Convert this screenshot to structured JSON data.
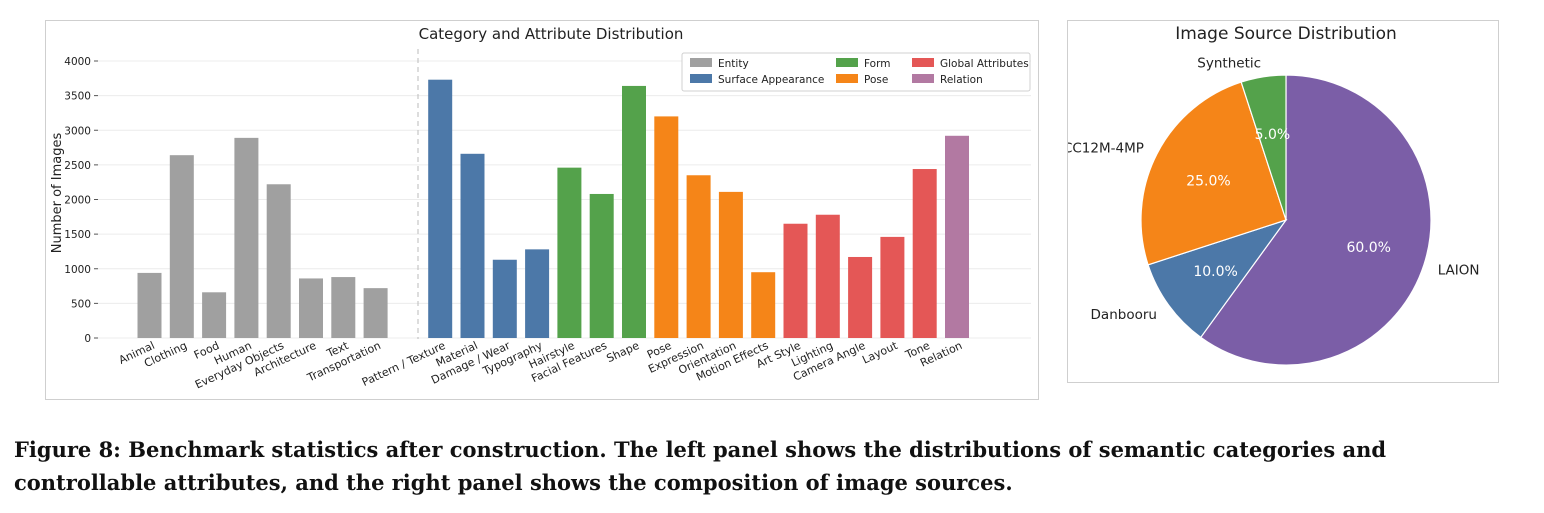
{
  "caption": "Figure 8: Benchmark statistics after construction. The left panel shows the distributions of semantic categories and controllable attributes, and the right panel shows the composition of image sources.",
  "colors": {
    "Entity": "#a0a0a0",
    "Surface Appearance": "#4c78a8",
    "Form": "#54a24b",
    "Pose": "#f58518",
    "Global Attributes": "#e45756",
    "Relation": "#b279a2",
    "pie_LAION": "#7b5ea7",
    "pie_Danbooru": "#4c78a8",
    "pie_CC12M-4MP": "#f58518",
    "pie_Synthetic": "#54a24b"
  },
  "chart_data": [
    {
      "type": "bar",
      "title": "Category and Attribute Distribution",
      "xlabel": "",
      "ylabel": "Number of Images",
      "ylim": [
        0,
        4000
      ],
      "yticks": [
        0,
        500,
        1000,
        1500,
        2000,
        2500,
        3000,
        3500,
        4000
      ],
      "grid": true,
      "legend_position": "top-right",
      "legend": [
        "Entity",
        "Surface Appearance",
        "Form",
        "Pose",
        "Global Attributes",
        "Relation"
      ],
      "categories": [
        "Animal",
        "Clothing",
        "Food",
        "Human",
        "Everyday Objects",
        "Architecture",
        "Text",
        "Transportation",
        "Pattern / Texture",
        "Material",
        "Damage / Wear",
        "Typography",
        "Hairstyle",
        "Facial Features",
        "Shape",
        "Pose",
        "Expression",
        "Orientation",
        "Motion Effects",
        "Art Style",
        "Lighting",
        "Camera Angle",
        "Layout",
        "Tone",
        "Relation"
      ],
      "values": [
        940,
        2640,
        660,
        2890,
        2220,
        860,
        880,
        720,
        3730,
        2660,
        1130,
        1280,
        2460,
        2080,
        3640,
        3200,
        2350,
        2110,
        950,
        1650,
        1780,
        1170,
        1460,
        2440,
        2920
      ],
      "groups": [
        "Entity",
        "Entity",
        "Entity",
        "Entity",
        "Entity",
        "Entity",
        "Entity",
        "Entity",
        "Surface Appearance",
        "Surface Appearance",
        "Surface Appearance",
        "Surface Appearance",
        "Form",
        "Form",
        "Form",
        "Pose",
        "Pose",
        "Pose",
        "Pose",
        "Global Attributes",
        "Global Attributes",
        "Global Attributes",
        "Global Attributes",
        "Global Attributes",
        "Relation"
      ]
    },
    {
      "type": "pie",
      "title": "Image Source Distribution",
      "slices": [
        {
          "label": "LAION",
          "value": 60.0,
          "pct": "60.0%"
        },
        {
          "label": "Danbooru",
          "value": 10.0,
          "pct": "10.0%"
        },
        {
          "label": "CC12M-4MP",
          "value": 25.0,
          "pct": "25.0%"
        },
        {
          "label": "Synthetic",
          "value": 5.0,
          "pct": "5.0%"
        }
      ]
    }
  ]
}
